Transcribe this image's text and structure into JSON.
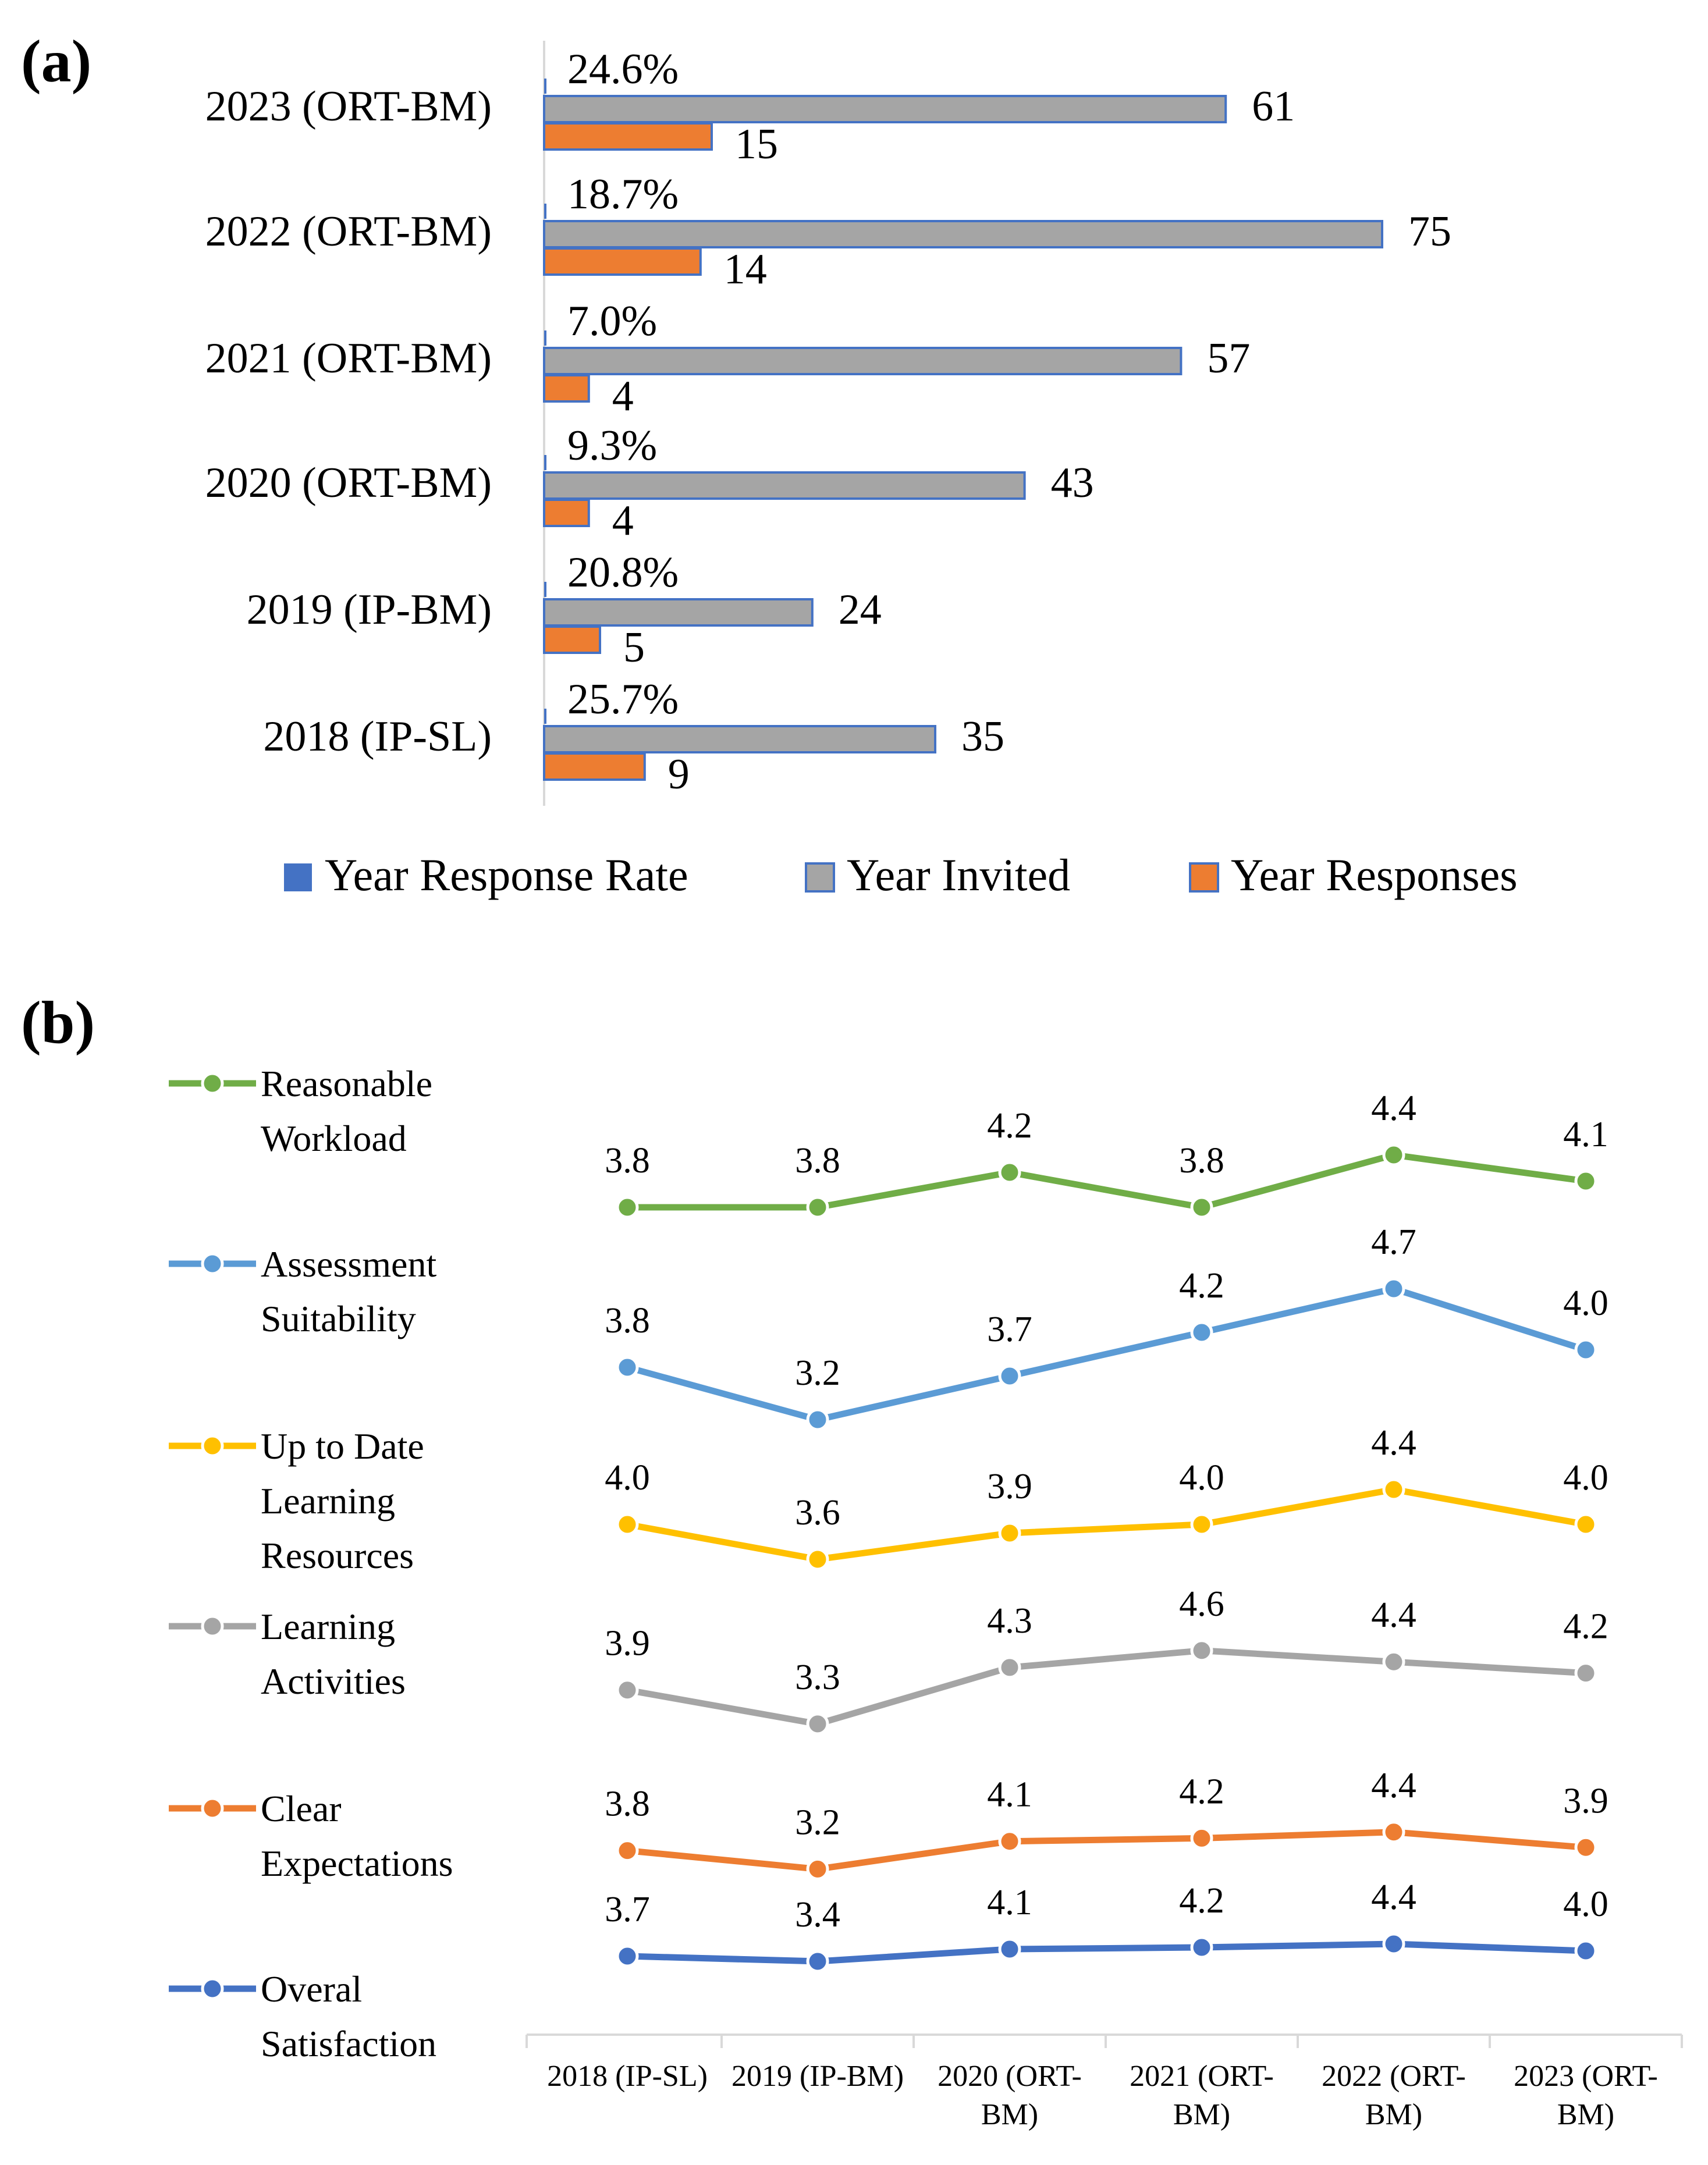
{
  "chart_data": [
    {
      "panel": "(a)",
      "type": "bar",
      "orientation": "horizontal",
      "categories": [
        "2023 (ORT-BM)",
        "2022 (ORT-BM)",
        "2021 (ORT-BM)",
        "2020 (ORT-BM)",
        "2019 (IP-BM)",
        "2018 (IP-SL)"
      ],
      "series": [
        {
          "name": "Year Response Rate",
          "color": "#4472C4",
          "values": [
            24.6,
            18.7,
            7.0,
            9.3,
            20.8,
            25.7
          ],
          "labels": [
            "24.6%",
            "18.7%",
            "7.0%",
            "9.3%",
            "20.8%",
            "25.7%"
          ]
        },
        {
          "name": "Year Invited",
          "color": "#A5A5A5",
          "values": [
            61,
            75,
            57,
            43,
            24,
            35
          ],
          "labels": [
            "61",
            "75",
            "57",
            "43",
            "24",
            "35"
          ]
        },
        {
          "name": "Year Responses",
          "color": "#ED7D31",
          "values": [
            15,
            14,
            4,
            4,
            5,
            9
          ],
          "labels": [
            "15",
            "14",
            "4",
            "4",
            "5",
            "9"
          ]
        }
      ],
      "legend_position": "bottom"
    },
    {
      "panel": "(b)",
      "type": "line",
      "categories": [
        [
          "2018 (IP-SL)"
        ],
        [
          "2019 (IP-BM)"
        ],
        [
          "2020 (ORT-",
          "BM)"
        ],
        [
          "2021 (ORT-",
          "BM)"
        ],
        [
          "2022 (ORT-",
          "BM)"
        ],
        [
          "2023 (ORT-",
          "BM)"
        ]
      ],
      "series": [
        {
          "name": [
            "Reasonable",
            "Workload"
          ],
          "color": "#70AD47",
          "values": [
            3.8,
            3.8,
            4.2,
            3.8,
            4.4,
            4.1
          ]
        },
        {
          "name": [
            "Assessment",
            "Suitability"
          ],
          "color": "#5B9BD5",
          "values": [
            3.8,
            3.2,
            3.7,
            4.2,
            4.7,
            4.0
          ]
        },
        {
          "name": [
            "Up to Date",
            "Learning",
            "Resources"
          ],
          "color": "#FFC000",
          "values": [
            4.0,
            3.6,
            3.9,
            4.0,
            4.4,
            4.0
          ]
        },
        {
          "name": [
            "Learning",
            "Activities"
          ],
          "color": "#A5A5A5",
          "values": [
            3.9,
            3.3,
            4.3,
            4.6,
            4.4,
            4.2
          ]
        },
        {
          "name": [
            "Clear",
            "Expectations"
          ],
          "color": "#ED7D31",
          "values": [
            3.8,
            3.2,
            4.1,
            4.2,
            4.4,
            3.9
          ]
        },
        {
          "name": [
            "Overal",
            "Satisfaction"
          ],
          "color": "#4472C4",
          "values": [
            3.7,
            3.4,
            4.1,
            4.2,
            4.4,
            4.0
          ]
        }
      ],
      "legend_position": "left"
    }
  ]
}
